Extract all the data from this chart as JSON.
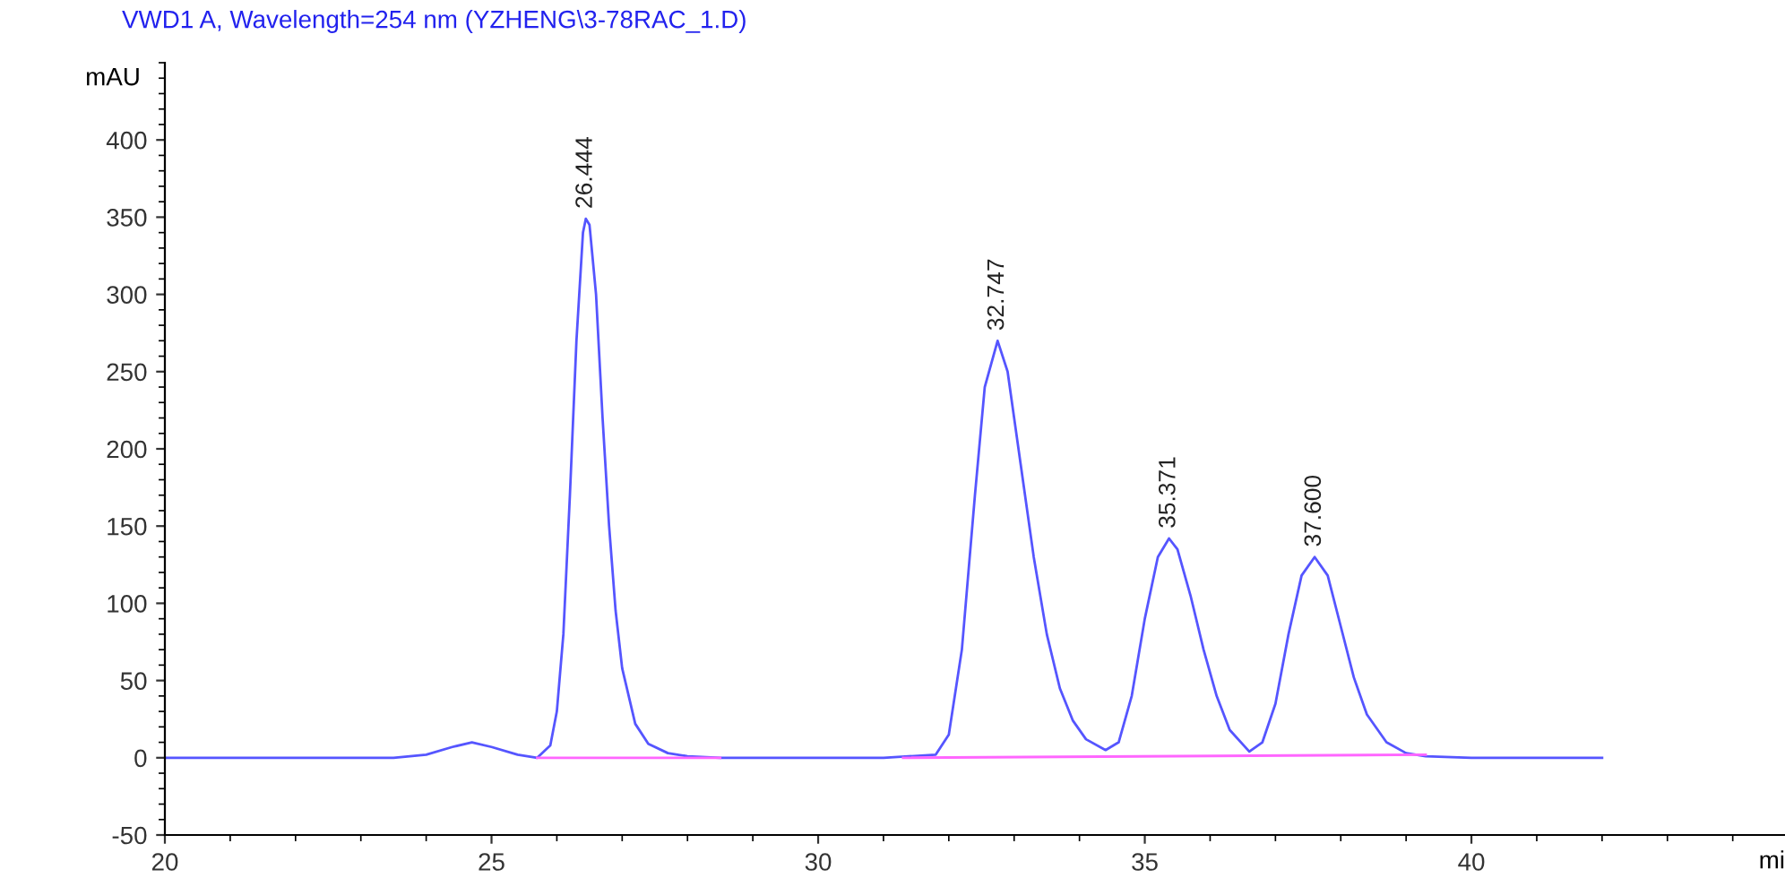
{
  "chart_data": {
    "type": "line",
    "title": "VWD1 A, Wavelength=254 nm (YZHENG\\3-78RAC_1.D)",
    "xlabel": "mi",
    "ylabel": "mAU",
    "xlim": [
      20,
      44.8
    ],
    "xticks": [
      20,
      25,
      30,
      35,
      40
    ],
    "ylim": [
      -50,
      450
    ],
    "yticks": [
      -50,
      0,
      50,
      100,
      150,
      200,
      250,
      300,
      350,
      400
    ],
    "grid": false,
    "legend": false,
    "marker": "none",
    "line_style": "solid",
    "series": [
      {
        "color": "#5555ff",
        "x": [
          20,
          22,
          23.5,
          24.0,
          24.4,
          24.7,
          25.0,
          25.4,
          25.7,
          25.9,
          26.0,
          26.1,
          26.2,
          26.3,
          26.4,
          26.444,
          26.5,
          26.6,
          26.7,
          26.8,
          26.9,
          27.0,
          27.2,
          27.4,
          27.7,
          28.0,
          28.5,
          31.0,
          31.8,
          32.0,
          32.2,
          32.4,
          32.55,
          32.747,
          32.9,
          33.1,
          33.3,
          33.5,
          33.7,
          33.9,
          34.1,
          34.4,
          34.6,
          34.8,
          35.0,
          35.2,
          35.371,
          35.5,
          35.7,
          35.9,
          36.1,
          36.3,
          36.6,
          36.8,
          37.0,
          37.2,
          37.4,
          37.6,
          37.8,
          38.0,
          38.2,
          38.4,
          38.7,
          39.0,
          39.3,
          40,
          42
        ],
        "values": [
          0,
          0,
          0,
          2,
          7,
          10,
          7,
          2,
          0,
          8,
          30,
          80,
          170,
          270,
          340,
          349,
          345,
          300,
          220,
          150,
          95,
          58,
          22,
          9,
          3,
          1,
          0,
          0,
          2,
          15,
          70,
          170,
          240,
          270,
          250,
          190,
          130,
          80,
          45,
          24,
          12,
          5,
          10,
          40,
          90,
          130,
          142,
          135,
          105,
          70,
          40,
          18,
          4,
          10,
          35,
          80,
          118,
          130,
          118,
          85,
          52,
          28,
          10,
          3,
          1,
          0,
          0
        ]
      },
      {
        "color": "#ff66ff",
        "x": [
          25.7,
          28.5
        ],
        "values": [
          0,
          0
        ]
      },
      {
        "color": "#ff66ff",
        "x": [
          31.3,
          39.3
        ],
        "values": [
          0,
          2
        ]
      }
    ],
    "annotations": [
      {
        "text": "26.444",
        "x": 26.444,
        "y": 349
      },
      {
        "text": "32.747",
        "x": 32.747,
        "y": 270
      },
      {
        "text": "35.371",
        "x": 35.371,
        "y": 142
      },
      {
        "text": "37.600",
        "x": 37.6,
        "y": 130
      }
    ]
  }
}
